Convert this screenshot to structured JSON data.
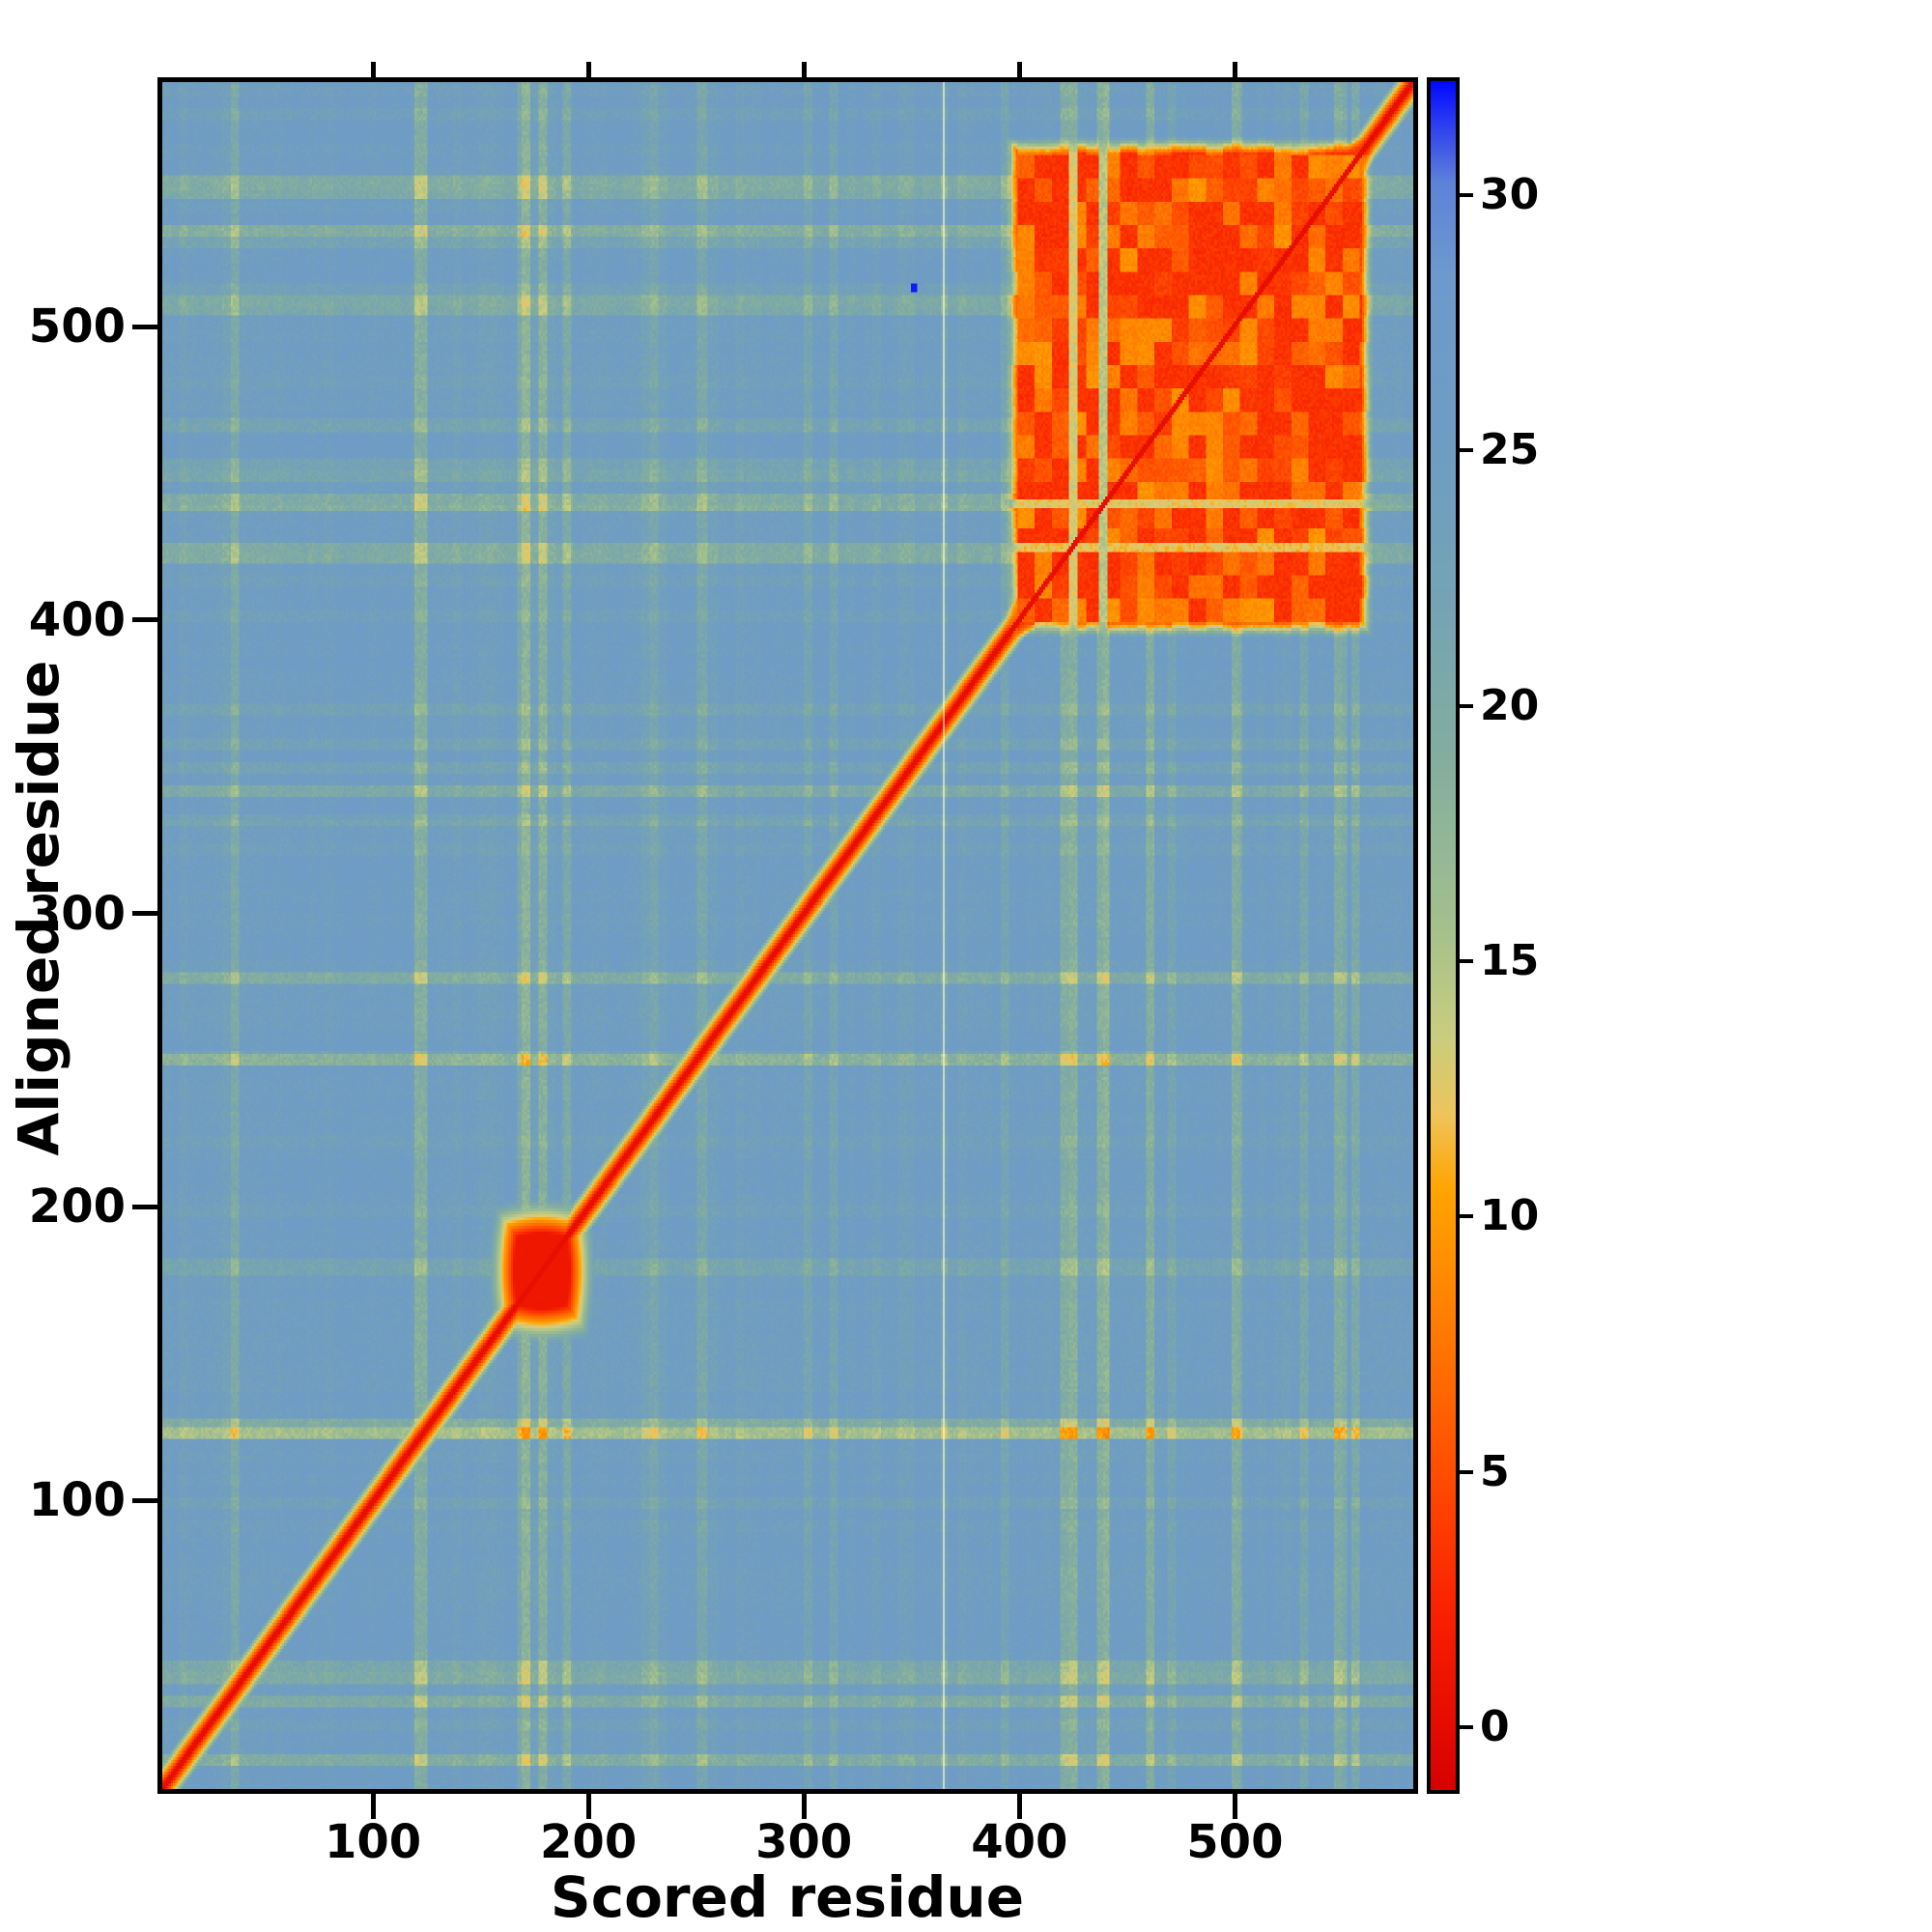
{
  "chart_data": {
    "type": "heatmap",
    "xlabel": "Scored residue",
    "ylabel": "Aligned residue",
    "x_range": [
      0,
      585
    ],
    "y_range": [
      0,
      585
    ],
    "x_ticks": [
      100,
      200,
      300,
      400,
      500
    ],
    "y_ticks": [
      100,
      200,
      300,
      400,
      500
    ],
    "grid": false,
    "legend": false,
    "background_value": 25,
    "colorbar": {
      "position": "right",
      "range": [
        -1.3,
        32.3
      ],
      "ticks": [
        0,
        5,
        10,
        15,
        20,
        25,
        30
      ],
      "colormap_stops": [
        [
          -1.3,
          "#d80000"
        ],
        [
          2,
          "#f81e00"
        ],
        [
          5,
          "#ff4e00"
        ],
        [
          8,
          "#ff7e00"
        ],
        [
          10.5,
          "#ffa400"
        ],
        [
          12,
          "#eec45c"
        ],
        [
          13.5,
          "#c9cd7e"
        ],
        [
          16,
          "#9fbe8f"
        ],
        [
          19,
          "#83ad9f"
        ],
        [
          22,
          "#75a3b4"
        ],
        [
          25,
          "#6f9dc2"
        ],
        [
          28.5,
          "#6e99cd"
        ],
        [
          30.3,
          "#5e82d8"
        ],
        [
          31.5,
          "#2b3af0"
        ],
        [
          32.3,
          "#0008ff"
        ]
      ]
    },
    "features": {
      "diagonal": {
        "core_value": 0.3,
        "half_width": 9,
        "step": 2.6
      },
      "diagonal_blob": {
        "center": 177,
        "radius_core": 13,
        "radius_outer": 25,
        "core_value": 1.2
      },
      "self_block": {
        "x_min": 398,
        "x_max": 562,
        "y_min": 398,
        "y_max": 562,
        "base_value": 2.4,
        "patch_amplitude": 10,
        "light_col_streaks": [
          {
            "from": 424,
            "to": 427,
            "value": 13
          },
          {
            "from": 438,
            "to": 441,
            "value": 14.5
          }
        ],
        "light_row_streaks": [
          {
            "from": 424,
            "to": 426,
            "value": 12
          },
          {
            "from": 439,
            "to": 441,
            "value": 12.5
          }
        ]
      },
      "pale_column": {
        "x": 365
      },
      "high_value_dot": {
        "x": 351,
        "y": 514,
        "value": 32
      },
      "col_streaks": [
        {
          "from": 118,
          "to": 123,
          "delta": -5.5
        },
        {
          "from": 166,
          "to": 171,
          "delta": -4.5
        },
        {
          "from": 187,
          "to": 190,
          "delta": -3.5
        },
        {
          "from": 250,
          "to": 254,
          "delta": -3.5
        },
        {
          "from": 300,
          "to": 303,
          "delta": -2.5
        },
        {
          "from": 364,
          "to": 366,
          "delta": -3
        },
        {
          "from": 420,
          "to": 427,
          "delta": -6
        },
        {
          "from": 437,
          "to": 442,
          "delta": -6.5
        },
        {
          "from": 470,
          "to": 473,
          "delta": -3
        },
        {
          "from": 500,
          "to": 504,
          "delta": -4.5
        },
        {
          "from": 548,
          "to": 553,
          "delta": -5
        }
      ],
      "row_streaks": [
        {
          "from": 120,
          "to": 126,
          "delta": -5.5
        },
        {
          "from": 176,
          "to": 181,
          "delta": -3.5
        },
        {
          "from": 248,
          "to": 252,
          "delta": -3
        },
        {
          "from": 330,
          "to": 333,
          "delta": -2.5
        },
        {
          "from": 420,
          "to": 426,
          "delta": -5
        },
        {
          "from": 438,
          "to": 443,
          "delta": -5.5
        },
        {
          "from": 465,
          "to": 469,
          "delta": -3
        },
        {
          "from": 505,
          "to": 511,
          "delta": -4.5
        },
        {
          "from": 545,
          "to": 552,
          "delta": -5
        }
      ],
      "noise_seed": 9
    }
  }
}
